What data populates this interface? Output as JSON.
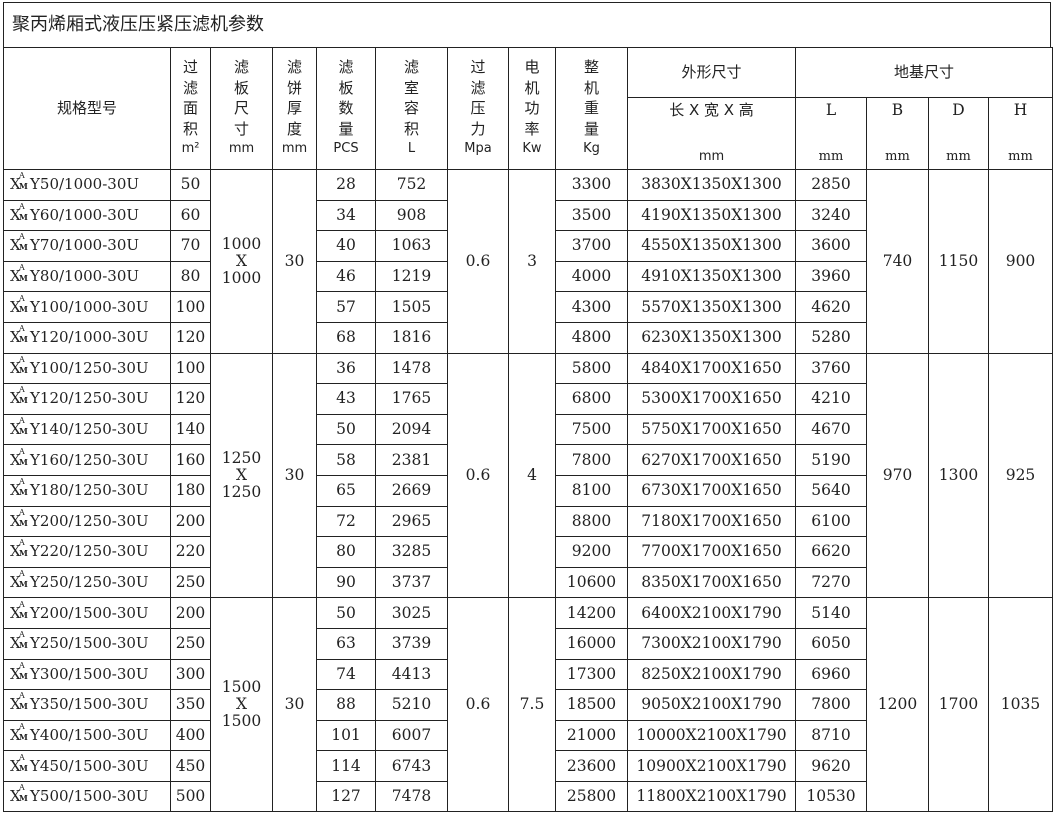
{
  "title": "聚丙烯厢式液压压紧压滤机参数",
  "headers": {
    "model": "规格型号",
    "area": [
      "过",
      "滤",
      "面",
      "积"
    ],
    "area_unit": "m²",
    "plate_size": [
      "滤",
      "板",
      "尺",
      "寸"
    ],
    "plate_size_unit": "mm",
    "cake": [
      "滤",
      "饼",
      "厚",
      "度"
    ],
    "cake_unit": "mm",
    "plates": [
      "滤",
      "板",
      "数",
      "量"
    ],
    "plates_unit": "PCS",
    "volume": [
      "滤",
      "室",
      "容",
      "积"
    ],
    "volume_unit": "L",
    "pressure": [
      "过",
      "滤",
      "压",
      "力"
    ],
    "pressure_unit": "Mpa",
    "power": [
      "电",
      "机",
      "功",
      "率"
    ],
    "power_unit": "Kw",
    "weight": [
      "整",
      "机",
      "重",
      "量"
    ],
    "weight_unit": "Kg",
    "dims": "外形尺寸",
    "dims_sub": "长 X 宽 X 高",
    "dims_unit": "mm",
    "foundation": "地基尺寸",
    "L": "L",
    "B": "B",
    "D": "D",
    "H": "H",
    "mm": "mm"
  },
  "model_prefix": {
    "x": "X",
    "sup": "A",
    "sub": "M"
  },
  "groups": [
    {
      "plate_size": [
        "1000",
        "X",
        "1000"
      ],
      "cake": "30",
      "pressure": "0.6",
      "power": "3",
      "B": "740",
      "D": "1150",
      "H": "900",
      "rows": [
        {
          "model": "Y50/1000-30U",
          "area": "50",
          "plates": "28",
          "volume": "752",
          "weight": "3300",
          "dims": "3830X1350X1300",
          "L": "2850"
        },
        {
          "model": "Y60/1000-30U",
          "area": "60",
          "plates": "34",
          "volume": "908",
          "weight": "3500",
          "dims": "4190X1350X1300",
          "L": "3240"
        },
        {
          "model": "Y70/1000-30U",
          "area": "70",
          "plates": "40",
          "volume": "1063",
          "weight": "3700",
          "dims": "4550X1350X1300",
          "L": "3600"
        },
        {
          "model": "Y80/1000-30U",
          "area": "80",
          "plates": "46",
          "volume": "1219",
          "weight": "4000",
          "dims": "4910X1350X1300",
          "L": "3960"
        },
        {
          "model": "Y100/1000-30U",
          "area": "100",
          "plates": "57",
          "volume": "1505",
          "weight": "4300",
          "dims": "5570X1350X1300",
          "L": "4620"
        },
        {
          "model": "Y120/1000-30U",
          "area": "120",
          "plates": "68",
          "volume": "1816",
          "weight": "4800",
          "dims": "6230X1350X1300",
          "L": "5280"
        }
      ]
    },
    {
      "plate_size": [
        "1250",
        "X",
        "1250"
      ],
      "cake": "30",
      "pressure": "0.6",
      "power": "4",
      "B": "970",
      "D": "1300",
      "H": "925",
      "rows": [
        {
          "model": "Y100/1250-30U",
          "area": "100",
          "plates": "36",
          "volume": "1478",
          "weight": "5800",
          "dims": "4840X1700X1650",
          "L": "3760"
        },
        {
          "model": "Y120/1250-30U",
          "area": "120",
          "plates": "43",
          "volume": "1765",
          "weight": "6800",
          "dims": "5300X1700X1650",
          "L": "4210"
        },
        {
          "model": "Y140/1250-30U",
          "area": "140",
          "plates": "50",
          "volume": "2094",
          "weight": "7500",
          "dims": "5750X1700X1650",
          "L": "4670"
        },
        {
          "model": "Y160/1250-30U",
          "area": "160",
          "plates": "58",
          "volume": "2381",
          "weight": "7800",
          "dims": "6270X1700X1650",
          "L": "5190"
        },
        {
          "model": "Y180/1250-30U",
          "area": "180",
          "plates": "65",
          "volume": "2669",
          "weight": "8100",
          "dims": "6730X1700X1650",
          "L": "5640"
        },
        {
          "model": "Y200/1250-30U",
          "area": "200",
          "plates": "72",
          "volume": "2965",
          "weight": "8800",
          "dims": "7180X1700X1650",
          "L": "6100"
        },
        {
          "model": "Y220/1250-30U",
          "area": "220",
          "plates": "80",
          "volume": "3285",
          "weight": "9200",
          "dims": "7700X1700X1650",
          "L": "6620"
        },
        {
          "model": "Y250/1250-30U",
          "area": "250",
          "plates": "90",
          "volume": "3737",
          "weight": "10600",
          "dims": "8350X1700X1650",
          "L": "7270"
        }
      ]
    },
    {
      "plate_size": [
        "1500",
        "X",
        "1500"
      ],
      "cake": "30",
      "pressure": "0.6",
      "power": "7.5",
      "B": "1200",
      "D": "1700",
      "H": "1035",
      "rows": [
        {
          "model": "Y200/1500-30U",
          "area": "200",
          "plates": "50",
          "volume": "3025",
          "weight": "14200",
          "dims": "6400X2100X1790",
          "L": "5140"
        },
        {
          "model": "Y250/1500-30U",
          "area": "250",
          "plates": "63",
          "volume": "3739",
          "weight": "16000",
          "dims": "7300X2100X1790",
          "L": "6050"
        },
        {
          "model": "Y300/1500-30U",
          "area": "300",
          "plates": "74",
          "volume": "4413",
          "weight": "17300",
          "dims": "8250X2100X1790",
          "L": "6960"
        },
        {
          "model": "Y350/1500-30U",
          "area": "350",
          "plates": "88",
          "volume": "5210",
          "weight": "18500",
          "dims": "9050X2100X1790",
          "L": "7800"
        },
        {
          "model": "Y400/1500-30U",
          "area": "400",
          "plates": "101",
          "volume": "6007",
          "weight": "21000",
          "dims": "10000X2100X1790",
          "L": "8710"
        },
        {
          "model": "Y450/1500-30U",
          "area": "450",
          "plates": "114",
          "volume": "6743",
          "weight": "23600",
          "dims": "10900X2100X1790",
          "L": "9620"
        },
        {
          "model": "Y500/1500-30U",
          "area": "500",
          "plates": "127",
          "volume": "7478",
          "weight": "25800",
          "dims": "11800X2100X1790",
          "L": "10530"
        }
      ]
    }
  ]
}
